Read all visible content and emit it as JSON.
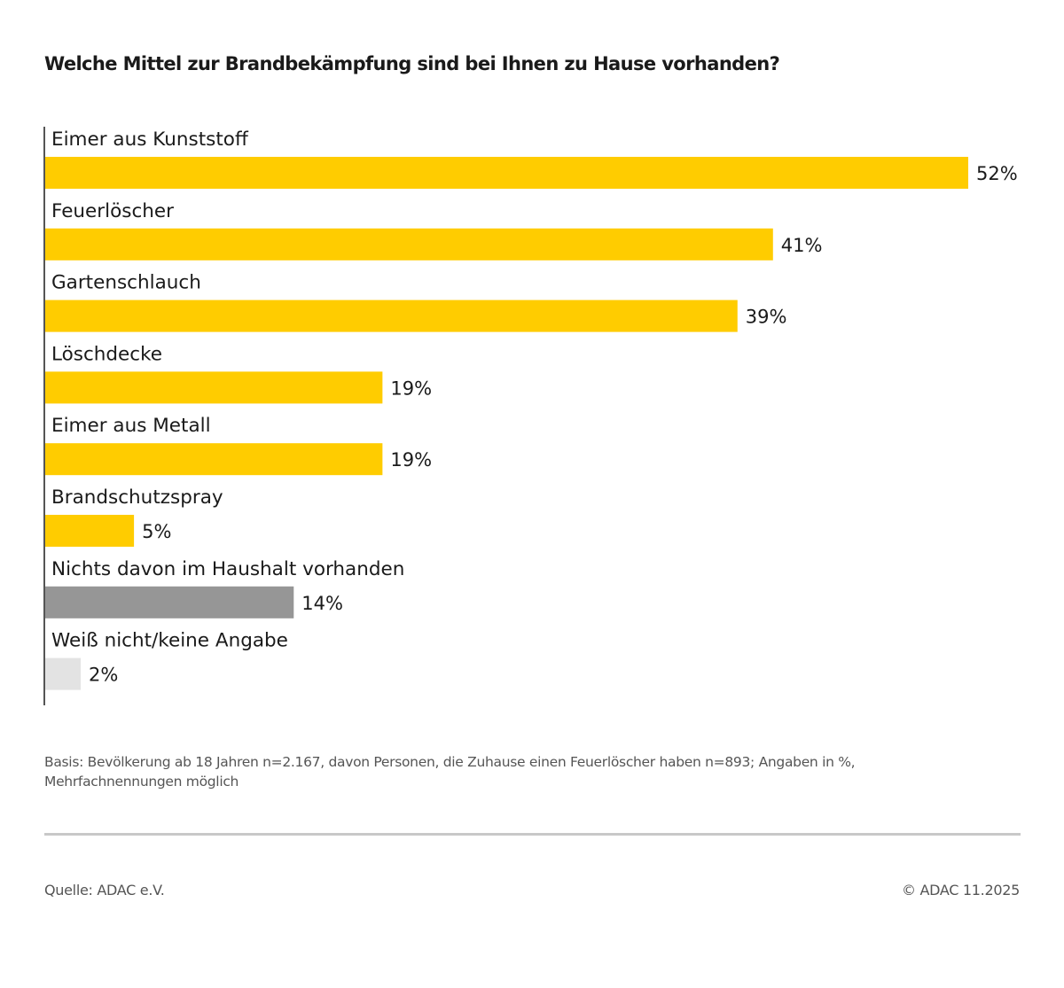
{
  "chart_data": {
    "type": "bar",
    "orientation": "horizontal",
    "title": "Welche Mittel zur Brandbekämpfung sind bei Ihnen zu Hause vorhanden?",
    "xlabel": "",
    "ylabel": "",
    "xlim": [
      0,
      52
    ],
    "grid": false,
    "categories": [
      "Eimer aus Kunststoff",
      "Feuerlöscher",
      "Gartenschlauch",
      "Löschdecke",
      "Eimer aus Metall",
      "Brandschutzspray",
      "Nichts davon im Haushalt vorhanden",
      "Weiß nicht/keine Angabe"
    ],
    "values": [
      52,
      41,
      39,
      19,
      19,
      5,
      14,
      2
    ],
    "value_labels": [
      "52%",
      "41%",
      "39%",
      "19%",
      "19%",
      "5%",
      "14%",
      "2%"
    ],
    "bar_colors": [
      "#FFCC00",
      "#FFCC00",
      "#FFCC00",
      "#FFCC00",
      "#FFCC00",
      "#FFCC00",
      "#969696",
      "#E3E3E3"
    ],
    "unit": "%"
  },
  "footer": {
    "note": "Basis: Bevölkerung ab 18 Jahren n=2.167, davon Personen, die Zuhause einen Feuerlöscher haben n=893; Angaben in %, Mehrfachnennungen möglich",
    "source": "Quelle: ADAC e.V.",
    "copyright": "© ADAC 11.2025"
  }
}
